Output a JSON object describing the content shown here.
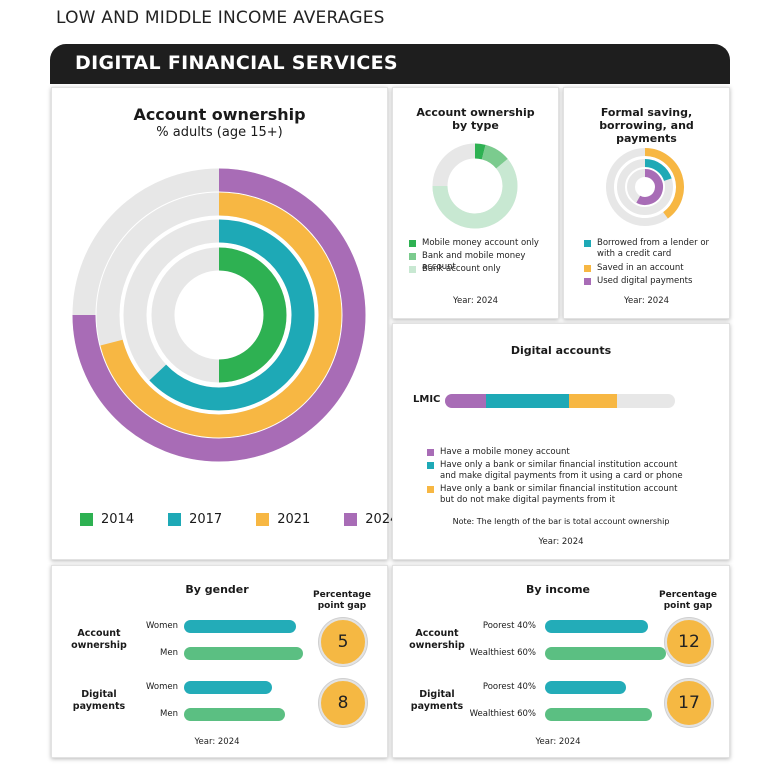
{
  "page": {
    "kicker": "LOW AND MIDDLE INCOME AVERAGES",
    "banner_title": "DIGITAL FINANCIAL SERVICES"
  },
  "colors": {
    "green": "#2eb152",
    "teal": "#1ea9b6",
    "yellow": "#f7b743",
    "purple": "#a86cb6",
    "light_green": "#7bcb8e",
    "pale_green": "#c8e8d2",
    "gray": "#e7e7e7",
    "bar_teal": "#23acb8",
    "bar_green": "#5bbf82"
  },
  "account_ownership": {
    "title": "Account ownership",
    "subtitle": "% adults (age 15+)",
    "legend": [
      "2014",
      "2017",
      "2021",
      "2024"
    ]
  },
  "by_type": {
    "title": "Account ownership by type",
    "legend": [
      "Mobile money account only",
      "Bank and mobile money account",
      "Bank account only"
    ],
    "year": "Year: 2024"
  },
  "formal": {
    "title": "Formal saving, borrowing, and payments",
    "legend": [
      "Borrowed from a lender or with a credit card",
      "Saved in an account",
      "Used digital payments"
    ],
    "year": "Year: 2024"
  },
  "digital": {
    "title": "Digital accounts",
    "row_label": "LMIC",
    "legend": [
      "Have a mobile money account",
      "Have only a bank or similar financial institution account and make digital payments from it using a card or phone",
      "Have only a bank or similar financial institution account but do not make digital payments from it"
    ],
    "note": "Note: The length of the bar is total account ownership",
    "year": "Year: 2024"
  },
  "gender": {
    "title": "By gender",
    "gap_header": "Percentage point gap",
    "group1": "Account ownership",
    "group2": "Digital payments",
    "labels": [
      "Women",
      "Men",
      "Women",
      "Men"
    ],
    "gaps": [
      "5",
      "8"
    ],
    "year": "Year: 2024"
  },
  "income": {
    "title": "By income",
    "gap_header": "Percentage point gap",
    "group1": "Account ownership",
    "group2": "Digital payments",
    "labels": [
      "Poorest 40%",
      "Wealthiest 60%",
      "Poorest 40%",
      "Wealthiest 60%"
    ],
    "gaps": [
      "12",
      "17"
    ],
    "year": "Year: 2024"
  },
  "chart_data": [
    {
      "type": "pie",
      "chart": "radial",
      "title": "Account ownership",
      "subtitle": "% adults (age 15+)",
      "categories": [
        "2014",
        "2017",
        "2021",
        "2024"
      ],
      "values": [
        50,
        63,
        71,
        75
      ]
    },
    {
      "type": "pie",
      "chart": "donut",
      "title": "Account ownership by type",
      "categories": [
        "Mobile money account only",
        "Bank and mobile money account",
        "Bank account only"
      ],
      "values": [
        4,
        10,
        61
      ]
    },
    {
      "type": "pie",
      "chart": "radial",
      "title": "Formal saving, borrowing, and payments",
      "categories": [
        "Borrowed from a lender or with a credit card",
        "Saved in an account",
        "Used digital payments"
      ],
      "values": [
        20,
        40,
        58
      ]
    },
    {
      "type": "bar",
      "chart": "stacked",
      "title": "Digital accounts",
      "categories": [
        "LMIC"
      ],
      "series": [
        {
          "name": "Have a mobile money account",
          "values": [
            18
          ]
        },
        {
          "name": "Have only a bank or similar financial institution account and make digital payments from it using a card or phone",
          "values": [
            36
          ]
        },
        {
          "name": "Have only a bank or similar financial institution account but do not make digital payments from it",
          "values": [
            21
          ]
        }
      ],
      "xlim": [
        0,
        100
      ]
    },
    {
      "type": "bar",
      "title": "By gender",
      "categories": [
        "Account ownership - Women",
        "Account ownership - Men",
        "Digital payments - Women",
        "Digital payments - Men"
      ],
      "values": [
        72,
        77,
        57,
        65
      ],
      "gaps": [
        5,
        8
      ]
    },
    {
      "type": "bar",
      "title": "By income",
      "categories": [
        "Account ownership - Poorest 40%",
        "Account ownership - Wealthiest 60%",
        "Digital payments - Poorest 40%",
        "Digital payments - Wealthiest 60%"
      ],
      "values": [
        67,
        79,
        53,
        70
      ],
      "gaps": [
        12,
        17
      ]
    }
  ]
}
